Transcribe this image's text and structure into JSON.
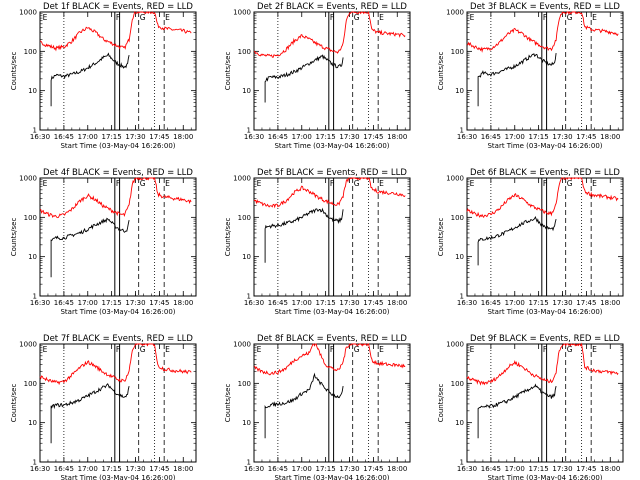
{
  "colors": {
    "events": "#000000",
    "lld": "#ff0000",
    "background": "#ffffff"
  },
  "chart_data": {
    "type": "line",
    "layout": "3x3 grid",
    "ylabel": "Counts/sec",
    "xlabel": "Start Time (03-May-04 16:26:00)",
    "yscale": "log",
    "ylim": [
      1,
      1000
    ],
    "ytick_labels": [
      "1",
      "10",
      "100",
      "1000"
    ],
    "xtick_labels": [
      "16:30",
      "16:45",
      "17:00",
      "17:15",
      "17:30",
      "17:45",
      "18:00"
    ],
    "x_time_range": [
      "16:30",
      "18:08"
    ],
    "legend": "in title: BLACK = Events, RED = LLD",
    "panels": [
      {
        "title": "Det 1f BLACK = Events, RED = LLD",
        "markers": [
          "E",
          "F",
          "G",
          "E"
        ],
        "series": [
          {
            "name": "Events",
            "color": "black",
            "x": [
              "16:37",
              "16:37",
              "16:40",
              "16:45",
              "16:50",
              "16:55",
              "17:00",
              "17:05",
              "17:10",
              "17:13",
              "17:17",
              "17:20",
              "17:23",
              "17:25",
              "17:26"
            ],
            "y": [
              4,
              20,
              25,
              23,
              26,
              30,
              38,
              50,
              70,
              80,
              55,
              45,
              40,
              45,
              80
            ]
          },
          {
            "name": "LLD",
            "color": "red",
            "x": [
              "16:30",
              "16:35",
              "16:40",
              "16:45",
              "16:50",
              "16:55",
              "17:00",
              "17:05",
              "17:10",
              "17:15",
              "17:20",
              "17:23",
              "17:26",
              "17:28",
              "17:30",
              "17:32",
              "17:42",
              "17:44",
              "17:48",
              "17:55",
              "18:00",
              "18:05"
            ],
            "y": [
              170,
              140,
              120,
              130,
              180,
              300,
              400,
              300,
              200,
              160,
              130,
              120,
              200,
              700,
              1000,
              1000,
              1000,
              450,
              380,
              350,
              330,
              290
            ]
          }
        ]
      },
      {
        "title": "Det 2f BLACK = Events, RED = LLD",
        "markers": [
          "F",
          "G",
          "E"
        ],
        "series": [
          {
            "name": "Events",
            "color": "black",
            "x": [
              "16:37",
              "16:37",
              "16:40",
              "16:45",
              "16:50",
              "16:55",
              "17:00",
              "17:05",
              "17:10",
              "17:13",
              "17:17",
              "17:20",
              "17:23",
              "17:25",
              "17:26"
            ],
            "y": [
              5,
              18,
              22,
              22,
              25,
              30,
              38,
              50,
              65,
              75,
              55,
              45,
              40,
              45,
              70
            ]
          },
          {
            "name": "LLD",
            "color": "red",
            "x": [
              "16:30",
              "16:35",
              "16:40",
              "16:45",
              "16:50",
              "16:55",
              "17:00",
              "17:05",
              "17:10",
              "17:15",
              "17:20",
              "17:23",
              "17:26",
              "17:28",
              "17:30",
              "17:32",
              "17:42",
              "17:44",
              "17:48",
              "17:55",
              "18:00",
              "18:05"
            ],
            "y": [
              100,
              80,
              75,
              80,
              110,
              180,
              250,
              200,
              150,
              120,
              100,
              95,
              150,
              600,
              1000,
              1000,
              1000,
              350,
              300,
              280,
              270,
              250
            ]
          }
        ]
      },
      {
        "title": "Det 3f BLACK = Events, RED = LLD",
        "markers": [
          "E",
          "F",
          "G",
          "E"
        ],
        "series": [
          {
            "name": "Events",
            "color": "black",
            "x": [
              "16:37",
              "16:37",
              "16:40",
              "16:45",
              "16:50",
              "16:55",
              "17:00",
              "17:05",
              "17:10",
              "17:13",
              "17:17",
              "17:20",
              "17:23",
              "17:25",
              "17:26"
            ],
            "y": [
              4,
              22,
              28,
              26,
              30,
              35,
              42,
              55,
              75,
              85,
              60,
              50,
              45,
              50,
              90
            ]
          },
          {
            "name": "LLD",
            "color": "red",
            "x": [
              "16:30",
              "16:35",
              "16:40",
              "16:45",
              "16:50",
              "16:55",
              "17:00",
              "17:05",
              "17:10",
              "17:15",
              "17:20",
              "17:23",
              "17:26",
              "17:28",
              "17:30",
              "17:32",
              "17:42",
              "17:44",
              "17:48",
              "17:55",
              "18:00",
              "18:05"
            ],
            "y": [
              160,
              130,
              110,
              120,
              160,
              260,
              350,
              280,
              190,
              150,
              120,
              115,
              200,
              700,
              1000,
              1000,
              1000,
              420,
              360,
              330,
              310,
              280
            ]
          }
        ]
      },
      {
        "title": "Det 4f BLACK = Events, RED = LLD",
        "markers": [
          "E",
          "F",
          "G",
          "E"
        ],
        "series": [
          {
            "name": "Events",
            "color": "black",
            "x": [
              "16:37",
              "16:37",
              "16:40",
              "16:45",
              "16:50",
              "16:55",
              "17:00",
              "17:05",
              "17:10",
              "17:13",
              "17:17",
              "17:20",
              "17:23",
              "17:25",
              "17:26"
            ],
            "y": [
              3,
              25,
              30,
              30,
              35,
              40,
              50,
              65,
              80,
              90,
              60,
              50,
              45,
              50,
              85
            ]
          },
          {
            "name": "LLD",
            "color": "red",
            "x": [
              "16:30",
              "16:35",
              "16:40",
              "16:45",
              "16:50",
              "16:55",
              "17:00",
              "17:05",
              "17:10",
              "17:15",
              "17:20",
              "17:23",
              "17:26",
              "17:28",
              "17:30",
              "17:32",
              "17:42",
              "17:44",
              "17:48",
              "17:55",
              "18:00",
              "18:05"
            ],
            "y": [
              150,
              120,
              105,
              115,
              160,
              260,
              360,
              280,
              190,
              150,
              120,
              115,
              200,
              700,
              1000,
              1000,
              1000,
              380,
              330,
              300,
              280,
              250
            ]
          }
        ]
      },
      {
        "title": "Det 5f BLACK = Events, RED = LLD",
        "markers": [
          "E",
          "F",
          "G",
          "E"
        ],
        "series": [
          {
            "name": "Events",
            "color": "black",
            "x": [
              "16:37",
              "16:37",
              "16:40",
              "16:45",
              "16:50",
              "16:55",
              "17:00",
              "17:05",
              "17:10",
              "17:13",
              "17:17",
              "17:20",
              "17:23",
              "17:25",
              "17:26"
            ],
            "y": [
              7,
              55,
              60,
              62,
              70,
              80,
              100,
              130,
              160,
              150,
              100,
              85,
              80,
              90,
              160
            ]
          },
          {
            "name": "LLD",
            "color": "red",
            "x": [
              "16:30",
              "16:35",
              "16:40",
              "16:45",
              "16:50",
              "16:55",
              "17:00",
              "17:05",
              "17:10",
              "17:15",
              "17:20",
              "17:23",
              "17:26",
              "17:28",
              "17:30",
              "17:32",
              "17:42",
              "17:44",
              "17:48",
              "17:55",
              "18:00",
              "18:05"
            ],
            "y": [
              270,
              220,
              190,
              200,
              260,
              420,
              560,
              450,
              330,
              260,
              220,
              210,
              350,
              800,
              1000,
              1000,
              1000,
              520,
              450,
              420,
              400,
              360
            ]
          }
        ]
      },
      {
        "title": "Det 6f BLACK = Events, RED = LLD",
        "markers": [
          "E",
          "F",
          "G",
          "E"
        ],
        "series": [
          {
            "name": "Events",
            "color": "black",
            "x": [
              "16:37",
              "16:37",
              "16:40",
              "16:45",
              "16:50",
              "16:55",
              "17:00",
              "17:05",
              "17:10",
              "17:13",
              "17:17",
              "17:20",
              "17:23",
              "17:25",
              "17:26"
            ],
            "y": [
              6,
              25,
              28,
              30,
              35,
              42,
              55,
              70,
              85,
              95,
              65,
              55,
              50,
              55,
              90
            ]
          },
          {
            "name": "LLD",
            "color": "red",
            "x": [
              "16:30",
              "16:35",
              "16:40",
              "16:45",
              "16:50",
              "16:55",
              "17:00",
              "17:05",
              "17:10",
              "17:15",
              "17:20",
              "17:23",
              "17:26",
              "17:28",
              "17:30",
              "17:32",
              "17:42",
              "17:44",
              "17:48",
              "17:55",
              "18:00",
              "18:05"
            ],
            "y": [
              150,
              120,
              110,
              120,
              160,
              260,
              370,
              290,
              200,
              160,
              130,
              125,
              210,
              700,
              1000,
              1000,
              1000,
              450,
              380,
              340,
              320,
              290
            ]
          }
        ]
      },
      {
        "title": "Det 7f BLACK = Events, RED = LLD",
        "markers": [
          "E",
          "F",
          "G",
          "E"
        ],
        "series": [
          {
            "name": "Events",
            "color": "black",
            "x": [
              "16:37",
              "16:37",
              "16:40",
              "16:45",
              "16:50",
              "16:55",
              "17:00",
              "17:05",
              "17:10",
              "17:13",
              "17:17",
              "17:20",
              "17:23",
              "17:25",
              "17:26"
            ],
            "y": [
              3,
              25,
              28,
              28,
              32,
              38,
              48,
              62,
              80,
              90,
              60,
              50,
              45,
              50,
              85
            ]
          },
          {
            "name": "LLD",
            "color": "red",
            "x": [
              "16:30",
              "16:35",
              "16:40",
              "16:45",
              "16:50",
              "16:55",
              "17:00",
              "17:05",
              "17:10",
              "17:15",
              "17:20",
              "17:23",
              "17:26",
              "17:28",
              "17:30",
              "17:32",
              "17:42",
              "17:44",
              "17:48",
              "17:55",
              "18:00",
              "18:05"
            ],
            "y": [
              150,
              120,
              105,
              110,
              160,
              250,
              350,
              270,
              190,
              150,
              120,
              115,
              200,
              700,
              1000,
              1000,
              1000,
              280,
              230,
              210,
              200,
              190
            ]
          }
        ]
      },
      {
        "title": "Det 8f BLACK = Events, RED = LLD",
        "markers": [
          "E",
          "F",
          "G",
          "E"
        ],
        "series": [
          {
            "name": "Events",
            "color": "black",
            "x": [
              "16:37",
              "16:37",
              "16:40",
              "16:45",
              "16:50",
              "16:55",
              "17:00",
              "17:05",
              "17:08",
              "17:10",
              "17:13",
              "17:17",
              "17:20",
              "17:23",
              "17:25",
              "17:26"
            ],
            "y": [
              4,
              25,
              28,
              30,
              32,
              38,
              55,
              70,
              160,
              120,
              90,
              60,
              50,
              45,
              50,
              85
            ]
          },
          {
            "name": "LLD",
            "color": "red",
            "x": [
              "16:30",
              "16:35",
              "16:40",
              "16:45",
              "16:50",
              "16:55",
              "17:00",
              "17:05",
              "17:07",
              "17:09",
              "17:12",
              "17:15",
              "17:20",
              "17:23",
              "17:26",
              "17:28",
              "17:30",
              "17:32",
              "17:42",
              "17:44",
              "17:48",
              "17:55",
              "18:00",
              "18:05"
            ],
            "y": [
              250,
              200,
              180,
              190,
              240,
              380,
              500,
              600,
              1000,
              1000,
              500,
              300,
              230,
              210,
              350,
              800,
              1000,
              1000,
              1000,
              380,
              320,
              300,
              290,
              270
            ]
          }
        ]
      },
      {
        "title": "Det 9f BLACK = Events, RED = LLD",
        "markers": [
          "E",
          "F",
          "G",
          "E"
        ],
        "series": [
          {
            "name": "Events",
            "color": "black",
            "x": [
              "16:37",
              "16:37",
              "16:40",
              "16:45",
              "16:50",
              "16:55",
              "17:00",
              "17:05",
              "17:10",
              "17:13",
              "17:17",
              "17:20",
              "17:23",
              "17:25",
              "17:26"
            ],
            "y": [
              4,
              22,
              25,
              26,
              30,
              35,
              45,
              58,
              75,
              85,
              60,
              50,
              45,
              50,
              85
            ]
          },
          {
            "name": "LLD",
            "color": "red",
            "x": [
              "16:30",
              "16:35",
              "16:40",
              "16:45",
              "16:50",
              "16:55",
              "17:00",
              "17:05",
              "17:10",
              "17:15",
              "17:20",
              "17:23",
              "17:26",
              "17:28",
              "17:30",
              "17:32",
              "17:42",
              "17:44",
              "17:48",
              "17:55",
              "18:00",
              "18:05"
            ],
            "y": [
              140,
              115,
              100,
              110,
              150,
              240,
              340,
              260,
              180,
              140,
              115,
              110,
              190,
              700,
              1000,
              1000,
              1000,
              260,
              220,
              200,
              190,
              180
            ]
          }
        ]
      }
    ],
    "annotations": [
      {
        "label": "F",
        "box_x": [
          "17:17",
          "17:20"
        ],
        "style": "solid box"
      },
      {
        "label": "E",
        "line_x": "16:30",
        "style": "solid"
      },
      {
        "label": "G",
        "line_x": "17:32",
        "style": "dashed"
      },
      {
        "label": "E",
        "line_x": "17:48",
        "style": "dashed"
      },
      {
        "label": "",
        "line_x": "16:45",
        "style": "dotted"
      },
      {
        "label": "",
        "line_x": "17:42",
        "style": "dotted"
      }
    ]
  }
}
